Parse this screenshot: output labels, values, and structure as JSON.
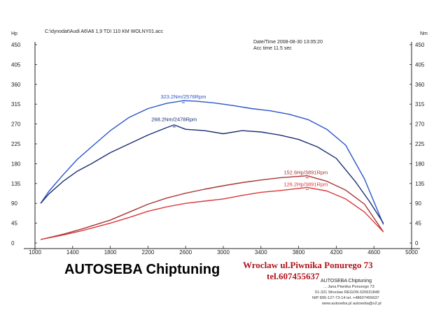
{
  "chart_data": {
    "type": "line",
    "header": {
      "file_path": "C:\\dynodat\\Audi A6\\A6 1,9 TDI 110 KM WOLNY01.acc",
      "datetime": "Date/Time  2008-08-30 13:05:20",
      "acc_time": "Acc time    11.5 sec"
    },
    "ylabel_left": "Hp",
    "ylabel_right": "Nm",
    "y_ticks": [
      "0",
      "45",
      "90",
      "135",
      "180",
      "225",
      "270",
      "315",
      "360",
      "405",
      "450"
    ],
    "x_ticks": [
      "1000",
      "1400",
      "1800",
      "2200",
      "2600",
      "3000",
      "3400",
      "3800",
      "4200",
      "4600",
      "5000"
    ],
    "xlim": [
      1000,
      5000
    ],
    "ylim": [
      0,
      450
    ],
    "grid": false,
    "colors": {
      "torque": "#1f3aa8",
      "power": "#c82828"
    },
    "series": [
      {
        "kind": "torque",
        "variant": "tuned",
        "color": "#2a55c4",
        "points": [
          [
            1060,
            90
          ],
          [
            1150,
            118
          ],
          [
            1300,
            155
          ],
          [
            1450,
            190
          ],
          [
            1600,
            218
          ],
          [
            1800,
            255
          ],
          [
            2000,
            285
          ],
          [
            2200,
            305
          ],
          [
            2400,
            317
          ],
          [
            2576,
            323
          ],
          [
            2700,
            322
          ],
          [
            2900,
            318
          ],
          [
            3100,
            312
          ],
          [
            3300,
            305
          ],
          [
            3500,
            300
          ],
          [
            3700,
            292
          ],
          [
            3900,
            280
          ],
          [
            4100,
            258
          ],
          [
            4300,
            222
          ],
          [
            4500,
            145
          ],
          [
            4700,
            42
          ]
        ]
      },
      {
        "kind": "torque",
        "variant": "stock",
        "color": "#1a2d74",
        "points": [
          [
            1060,
            90
          ],
          [
            1150,
            112
          ],
          [
            1300,
            140
          ],
          [
            1450,
            163
          ],
          [
            1600,
            180
          ],
          [
            1800,
            205
          ],
          [
            2000,
            225
          ],
          [
            2200,
            245
          ],
          [
            2400,
            262
          ],
          [
            2478,
            268
          ],
          [
            2600,
            258
          ],
          [
            2800,
            255
          ],
          [
            3000,
            248
          ],
          [
            3200,
            255
          ],
          [
            3400,
            252
          ],
          [
            3600,
            245
          ],
          [
            3800,
            235
          ],
          [
            4000,
            218
          ],
          [
            4200,
            192
          ],
          [
            4400,
            140
          ],
          [
            4550,
            95
          ],
          [
            4700,
            45
          ]
        ]
      },
      {
        "kind": "power",
        "variant": "tuned",
        "color": "#a83434",
        "points": [
          [
            1060,
            8
          ],
          [
            1300,
            20
          ],
          [
            1500,
            32
          ],
          [
            1800,
            52
          ],
          [
            2000,
            70
          ],
          [
            2200,
            88
          ],
          [
            2400,
            102
          ],
          [
            2600,
            113
          ],
          [
            2800,
            122
          ],
          [
            3000,
            130
          ],
          [
            3200,
            137
          ],
          [
            3400,
            143
          ],
          [
            3600,
            148
          ],
          [
            3891,
            152.6
          ],
          [
            4100,
            140
          ],
          [
            4300,
            120
          ],
          [
            4500,
            88
          ],
          [
            4700,
            25
          ]
        ]
      },
      {
        "kind": "power",
        "variant": "stock",
        "color": "#d83838",
        "points": [
          [
            1060,
            8
          ],
          [
            1300,
            18
          ],
          [
            1500,
            28
          ],
          [
            1800,
            45
          ],
          [
            2000,
            58
          ],
          [
            2200,
            72
          ],
          [
            2400,
            82
          ],
          [
            2600,
            90
          ],
          [
            2800,
            95
          ],
          [
            3000,
            100
          ],
          [
            3200,
            108
          ],
          [
            3400,
            115
          ],
          [
            3600,
            119
          ],
          [
            3891,
            126.2
          ],
          [
            4100,
            118
          ],
          [
            4300,
            100
          ],
          [
            4500,
            70
          ],
          [
            4700,
            25
          ]
        ]
      }
    ],
    "annotations": [
      {
        "text": "323.2Nm/2576Rpm",
        "x": 2576,
        "y": 323.2,
        "color": "#2a55c4"
      },
      {
        "text": "268.2Nm/2478Rpm",
        "x": 2478,
        "y": 268.2,
        "color": "#1a2d74"
      },
      {
        "text": "152.6Hp/3891Rpm",
        "x": 3891,
        "y": 152.6,
        "color": "#a83434"
      },
      {
        "text": "126.2Hp/3891Rpm",
        "x": 3891,
        "y": 126.2,
        "color": "#d83838"
      }
    ]
  },
  "brand": {
    "name": "AUTOSEBA Chiptuning",
    "address_line": "Wroclaw ul.Piwnika Ponurego 73",
    "phone_line": "tel.607455637"
  },
  "stamp": {
    "title": "AUTOSEBA Chiptuning",
    "lines": [
      "... Jana Piwnika Ponurego 73",
      "51-321 Wroclaw REGON 020631848",
      "NIP 895-127-73-14 tel. +48607455637",
      "www.autoseba.pl   autoseba@o2.pl"
    ]
  }
}
